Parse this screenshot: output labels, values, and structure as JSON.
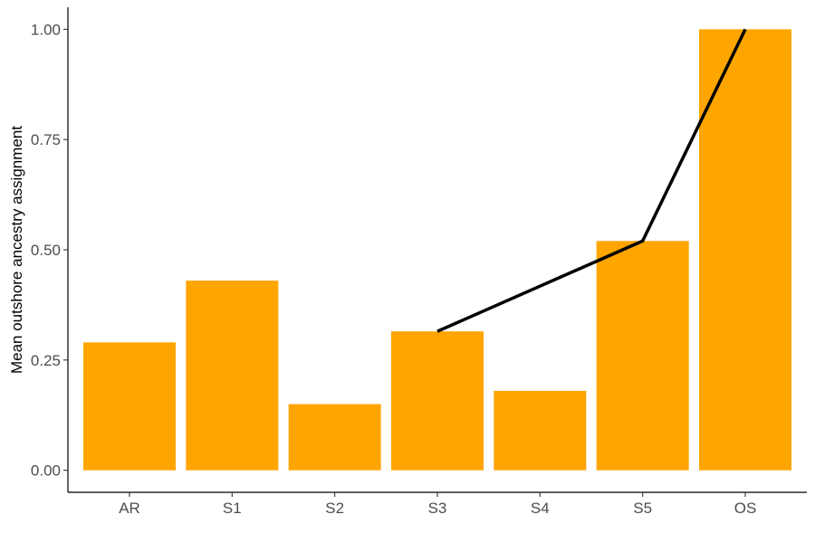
{
  "chart_data": {
    "type": "bar",
    "categories": [
      "AR",
      "S1",
      "S2",
      "S3",
      "S4",
      "S5",
      "OS"
    ],
    "values": [
      0.29,
      0.43,
      0.15,
      0.315,
      0.18,
      0.52,
      1.0
    ],
    "ylabel": "Mean outshore ancestry assignment",
    "xlabel": "",
    "ylim": [
      -0.05,
      1.05
    ],
    "yticks": [
      "0.00",
      "0.25",
      "0.50",
      "0.75",
      "1.00"
    ],
    "bar_color": "#FFA500",
    "line_color": "#000000",
    "line": {
      "categories": [
        "S3",
        "S5",
        "OS"
      ],
      "values": [
        0.315,
        0.52,
        1.0
      ]
    },
    "grid": false,
    "legend": "none"
  }
}
